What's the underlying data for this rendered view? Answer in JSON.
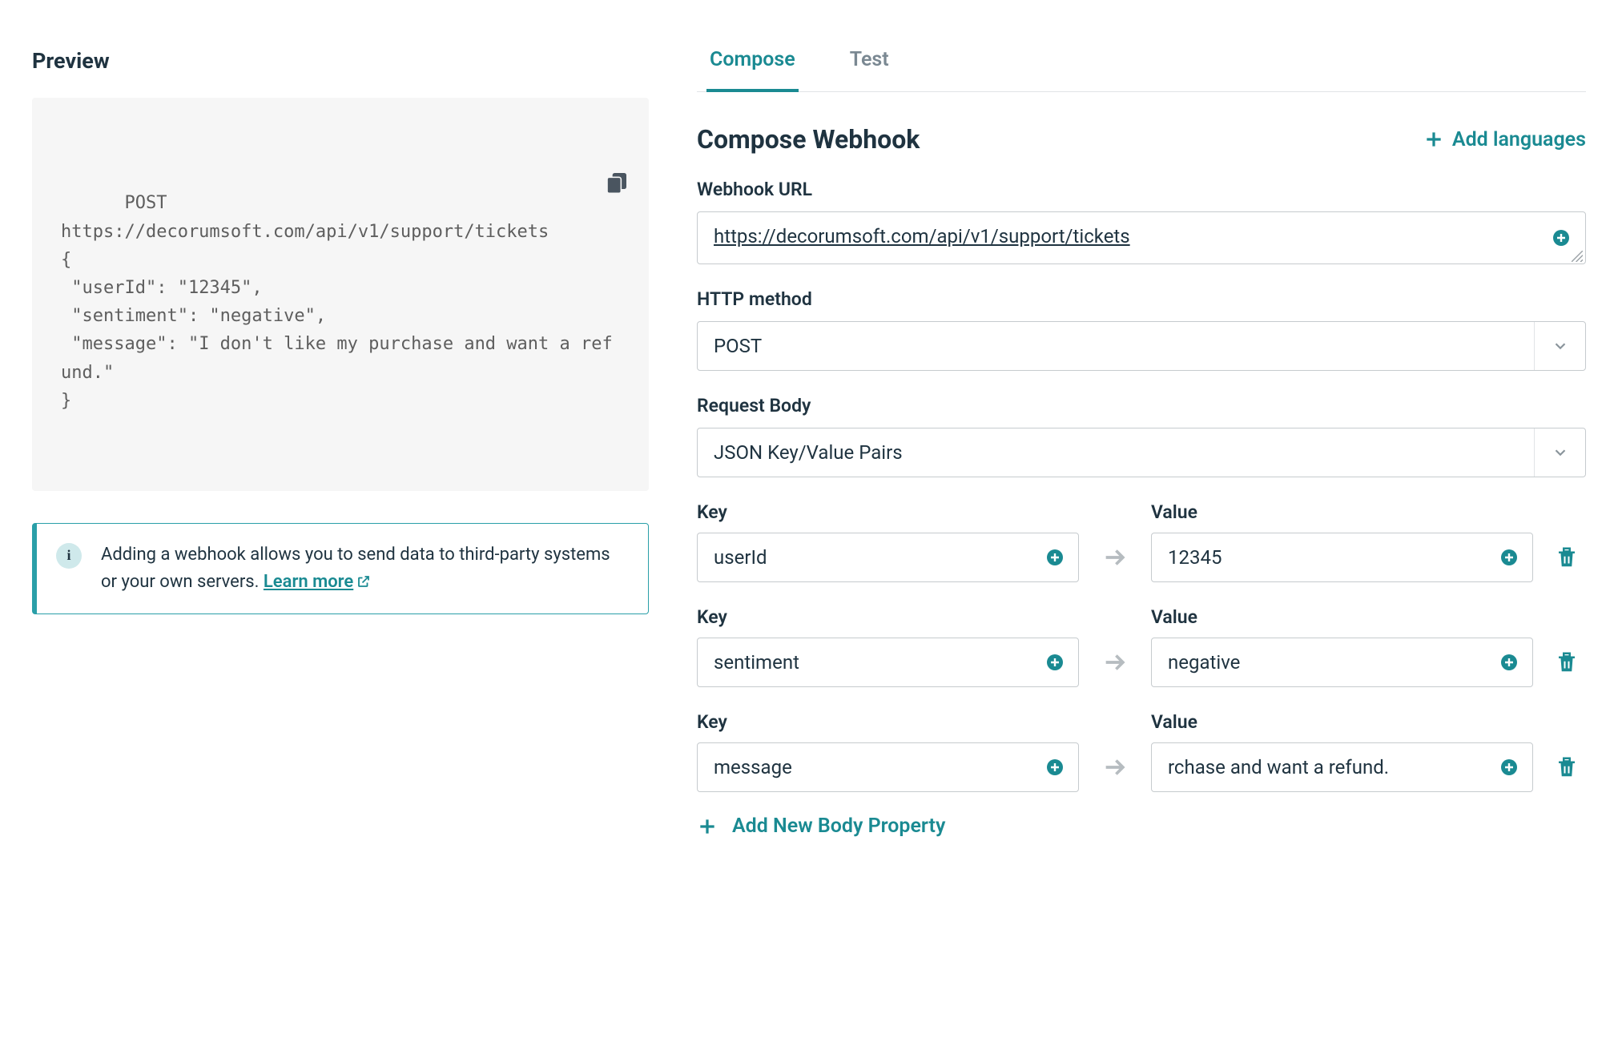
{
  "left": {
    "heading": "Preview",
    "preview_text": "POST\nhttps://decorumsoft.com/api/v1/support/tickets\n{\n \"userId\": \"12345\",\n \"sentiment\": \"negative\",\n \"message\": \"I don't like my purchase and want a refund.\"\n}",
    "info_text": "Adding a webhook allows you to send data to third-party systems or your own servers.  ",
    "learn_more": "Learn more"
  },
  "tabs": {
    "compose": "Compose",
    "test": "Test"
  },
  "panel": {
    "title": "Compose Webhook",
    "add_languages": "Add languages",
    "url_label": "Webhook URL",
    "url_value": "https://decorumsoft.com/api/v1/support/tickets",
    "method_label": "HTTP method",
    "method_value": "POST",
    "body_type_label": "Request Body",
    "body_type_value": "JSON Key/Value Pairs",
    "key_label": "Key",
    "value_label": "Value",
    "add_property": "Add New Body Property",
    "rows": [
      {
        "key": "userId",
        "value": "12345"
      },
      {
        "key": "sentiment",
        "value": "negative"
      },
      {
        "key": "message",
        "value": "rchase and want a refund."
      }
    ]
  },
  "colors": {
    "accent": "#1a8a92",
    "text": "#1f3340",
    "muted": "#7a8892",
    "border": "#c6cbce",
    "preview_bg": "#f6f6f6"
  }
}
